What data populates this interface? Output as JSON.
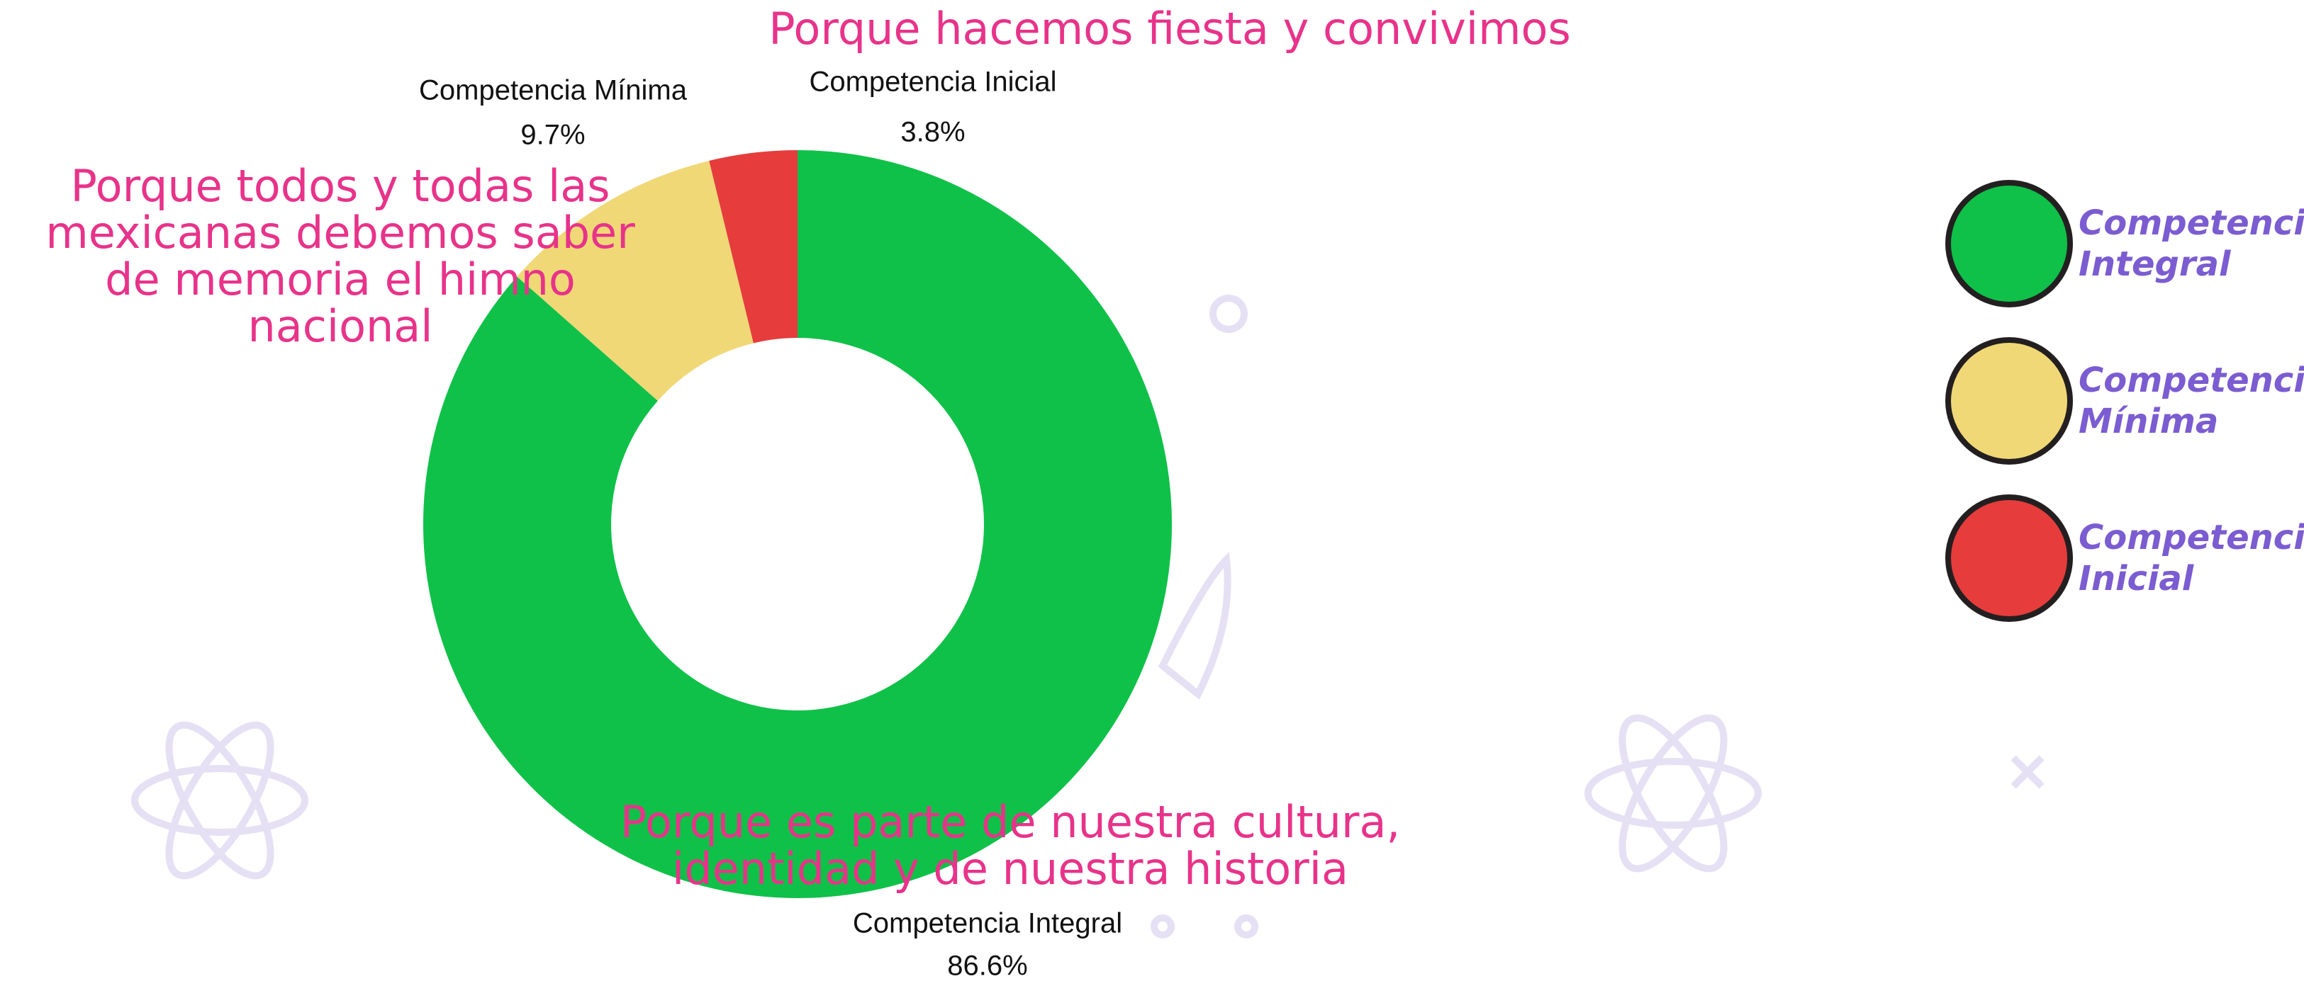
{
  "chart_data": {
    "type": "donut",
    "categories": [
      "Competencia Integral",
      "Competencia Mínima",
      "Competencia Inicial"
    ],
    "values": [
      86.6,
      9.7,
      3.8
    ],
    "value_labels": [
      "86.6%",
      "9.7%",
      "3.8%"
    ],
    "colors": [
      "#0fc148",
      "#f0d877",
      "#e63c3c"
    ],
    "annotations": [
      "Porque hacemos fiesta y convivimos",
      "Porque todos y todas las mexicanas debemos saber de memoria el himno nacional",
      "Porque es parte de nuestra cultura, identidad y de nuestra historia"
    ],
    "legend": "right"
  }
}
